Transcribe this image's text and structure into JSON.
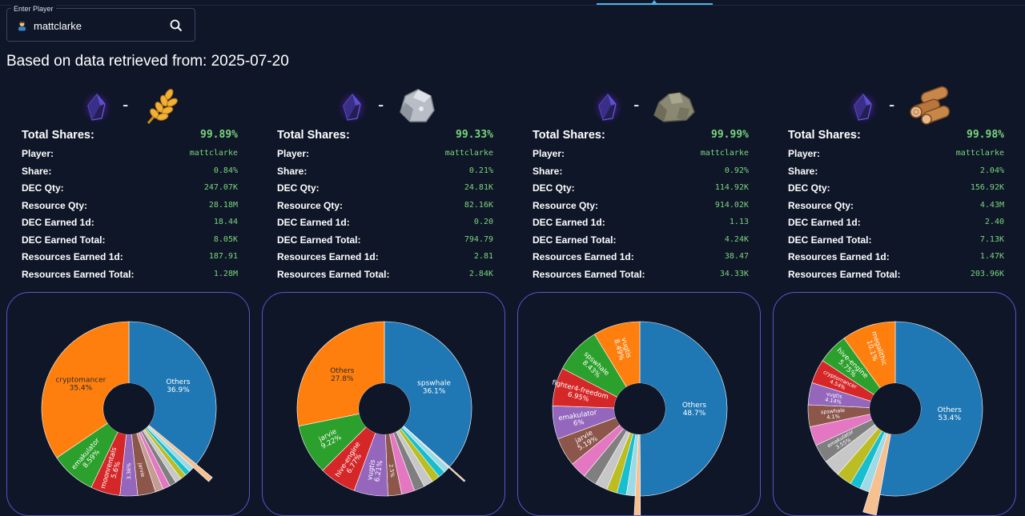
{
  "player_input": {
    "label": "Enter Player",
    "value": "mattclarke"
  },
  "page_title": "Based on data retrieved from: 2025-07-20",
  "icons": {
    "search": "search-icon",
    "avatar": "player-avatar-icon",
    "dec": "dark-energy-crystal-icon"
  },
  "stat_labels": {
    "total": "Total Shares:",
    "player": "Player:",
    "share": "Share:",
    "dec_qty": "DEC Qty:",
    "resource_qty": "Resource Qty:",
    "dec_1d": "DEC Earned 1d:",
    "dec_total": "DEC Earned Total:",
    "res_1d": "Resources Earned 1d:",
    "res_total": "Resources Earned Total:"
  },
  "pools": [
    {
      "resource_icon": "grain-icon",
      "dash": "-",
      "stats": {
        "total": "99.89%",
        "player": "mattclarke",
        "share": "0.84%",
        "dec_qty": "247.07K",
        "resource_qty": "28.18M",
        "dec_1d": "18.44",
        "dec_total": "8.05K",
        "res_1d": "187.91",
        "res_total": "1.28M"
      }
    },
    {
      "resource_icon": "stone-icon",
      "dash": "-",
      "stats": {
        "total": "99.33%",
        "player": "mattclarke",
        "share": "0.21%",
        "dec_qty": "24.81K",
        "resource_qty": "82.16K",
        "dec_1d": "0.20",
        "dec_total": "794.79",
        "res_1d": "2.81",
        "res_total": "2.84K"
      }
    },
    {
      "resource_icon": "iron-ore-icon",
      "dash": "-",
      "stats": {
        "total": "99.99%",
        "player": "mattclarke",
        "share": "0.92%",
        "dec_qty": "114.92K",
        "resource_qty": "914.02K",
        "dec_1d": "1.13",
        "dec_total": "4.24K",
        "res_1d": "38.47",
        "res_total": "34.33K"
      }
    },
    {
      "resource_icon": "wood-icon",
      "dash": "-",
      "stats": {
        "total": "99.98%",
        "player": "mattclarke",
        "share": "2.04%",
        "dec_qty": "156.92K",
        "resource_qty": "4.43M",
        "dec_1d": "2.40",
        "dec_total": "7.13K",
        "res_1d": "1.47K",
        "res_total": "203.96K"
      }
    }
  ],
  "chart_data": [
    {
      "type": "pie",
      "slices": [
        {
          "label": "Others",
          "value": 36.9,
          "pct": "36.9%",
          "color": "#1f77b4"
        },
        {
          "label": "",
          "value": 0.84,
          "pct": "",
          "color": "#f6c090",
          "highlight": true
        },
        {
          "label": "",
          "value": 1.0,
          "pct": "",
          "color": "#9edae5"
        },
        {
          "label": "",
          "value": 1.0,
          "pct": "",
          "color": "#17becf"
        },
        {
          "label": "",
          "value": 1.1,
          "pct": "",
          "color": "#bcbd22"
        },
        {
          "label": "",
          "value": 1.2,
          "pct": "",
          "color": "#c7c7c7"
        },
        {
          "label": "",
          "value": 1.3,
          "pct": "",
          "color": "#7f7f7f"
        },
        {
          "label": "",
          "value": 1.4,
          "pct": "",
          "color": "#e377c2"
        },
        {
          "label": "",
          "value": 1.5,
          "pct": "",
          "color": "#c49c94"
        },
        {
          "label": "jarvie",
          "value": 3.4,
          "pct": "",
          "color": "#8c564b"
        },
        {
          "label": "",
          "value": 3.36,
          "pct": "3.36%",
          "color": "#9467bd"
        },
        {
          "label": "moonrentals",
          "value": 5.6,
          "pct": "5.6%",
          "color": "#d62728"
        },
        {
          "label": "emakulator",
          "value": 8.59,
          "pct": "8.59%",
          "color": "#2ca02c"
        },
        {
          "label": "cryptomancer",
          "value": 35.4,
          "pct": "35.4%",
          "color": "#ff7f0e"
        }
      ]
    },
    {
      "type": "pie",
      "slices": [
        {
          "label": "spswhale",
          "value": 36.1,
          "pct": "36.1%",
          "color": "#1f77b4"
        },
        {
          "label": "",
          "value": 0.21,
          "pct": "",
          "color": "#f6c090",
          "highlight": true
        },
        {
          "label": "",
          "value": 1.1,
          "pct": "",
          "color": "#9edae5"
        },
        {
          "label": "",
          "value": 1.3,
          "pct": "",
          "color": "#17becf"
        },
        {
          "label": "",
          "value": 1.5,
          "pct": "",
          "color": "#bcbd22"
        },
        {
          "label": "",
          "value": 1.7,
          "pct": "",
          "color": "#c7c7c7"
        },
        {
          "label": "",
          "value": 1.9,
          "pct": "",
          "color": "#7f7f7f"
        },
        {
          "label": "",
          "value": 2.4,
          "pct": "",
          "color": "#e377c2"
        },
        {
          "label": "",
          "value": 2.5,
          "pct": "2.5%",
          "color": "#8c564b"
        },
        {
          "label": "vugtis",
          "value": 6.21,
          "pct": "6.21%",
          "color": "#9467bd"
        },
        {
          "label": "hive-engine",
          "value": 6.77,
          "pct": "6.77%",
          "color": "#d62728"
        },
        {
          "label": "jarvie",
          "value": 9.22,
          "pct": "9.22%",
          "color": "#2ca02c"
        },
        {
          "label": "Others",
          "value": 27.8,
          "pct": "27.8%",
          "color": "#ff7f0e"
        }
      ]
    },
    {
      "type": "pie",
      "slices": [
        {
          "label": "Others",
          "value": 48.7,
          "pct": "48.7%",
          "color": "#1f77b4"
        },
        {
          "label": "",
          "value": 0.92,
          "pct": "",
          "color": "#f6c090",
          "highlight": true
        },
        {
          "label": "",
          "value": 1.6,
          "pct": "",
          "color": "#9edae5"
        },
        {
          "label": "",
          "value": 1.7,
          "pct": "",
          "color": "#17becf"
        },
        {
          "label": "",
          "value": 1.9,
          "pct": "",
          "color": "#bcbd22"
        },
        {
          "label": "",
          "value": 2.2,
          "pct": "",
          "color": "#c7c7c7"
        },
        {
          "label": "",
          "value": 2.5,
          "pct": "",
          "color": "#7f7f7f"
        },
        {
          "label": "",
          "value": 3.0,
          "pct": "",
          "color": "#e377c2"
        },
        {
          "label": "jarvie",
          "value": 5.19,
          "pct": "5.19%",
          "color": "#8c564b"
        },
        {
          "label": "emakulator",
          "value": 6.0,
          "pct": "6%",
          "color": "#9467bd"
        },
        {
          "label": "fighter4-freedom",
          "value": 6.95,
          "pct": "6.95%",
          "color": "#d62728"
        },
        {
          "label": "spswhale",
          "value": 8.43,
          "pct": "8.43%",
          "color": "#2ca02c"
        },
        {
          "label": "vugtis",
          "value": 8.49,
          "pct": "8.49%",
          "color": "#ff7f0e"
        }
      ]
    },
    {
      "type": "pie",
      "slices": [
        {
          "label": "Others",
          "value": 53.4,
          "pct": "53.4%",
          "color": "#1f77b4"
        },
        {
          "label": "",
          "value": 2.04,
          "pct": "",
          "color": "#f6c090",
          "highlight": true
        },
        {
          "label": "",
          "value": 1.8,
          "pct": "",
          "color": "#9edae5"
        },
        {
          "label": "",
          "value": 2.0,
          "pct": "",
          "color": "#17becf"
        },
        {
          "label": "",
          "value": 2.9,
          "pct": "",
          "color": "#bcbd22"
        },
        {
          "label": "",
          "value": 3.2,
          "pct": "",
          "color": "#c7c7c7"
        },
        {
          "label": "emakulator",
          "value": 3.55,
          "pct": "3.55%",
          "color": "#7f7f7f"
        },
        {
          "label": "",
          "value": 3.6,
          "pct": "",
          "color": "#e377c2"
        },
        {
          "label": "spswhale",
          "value": 4.1,
          "pct": "4.1%",
          "color": "#8c564b"
        },
        {
          "label": "vugtis",
          "value": 4.14,
          "pct": "4.14%",
          "color": "#9467bd"
        },
        {
          "label": "cryptomancer",
          "value": 4.54,
          "pct": "4.54%",
          "color": "#d62728"
        },
        {
          "label": "hive-engine",
          "value": 5.75,
          "pct": "5.75%",
          "color": "#2ca02c"
        },
        {
          "label": "megalithic",
          "value": 10.1,
          "pct": "10.1%",
          "color": "#ff7f0e"
        }
      ]
    }
  ]
}
